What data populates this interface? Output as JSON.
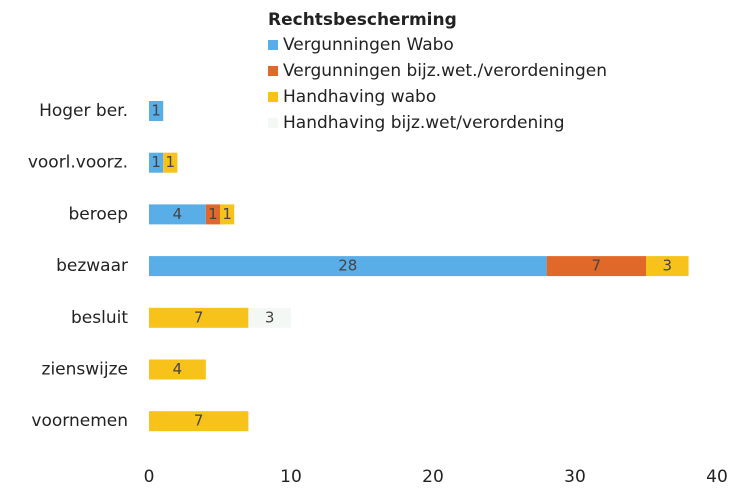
{
  "chart_data": {
    "type": "stacked_barh",
    "legend_title": "Rechtsbescherming",
    "categories": [
      "Hoger ber.",
      "voorl.voorz.",
      "beroep",
      "bezwaar",
      "besluit",
      "zienswijze",
      "voornemen"
    ],
    "series": [
      {
        "name": "Vergunningen Wabo",
        "color": "#5aaee8",
        "values": [
          1,
          1,
          4,
          28,
          null,
          null,
          null
        ]
      },
      {
        "name": "Vergunningen bijz.wet./verordeningen",
        "color": "#e0692a",
        "values": [
          null,
          null,
          1,
          7,
          null,
          null,
          null
        ]
      },
      {
        "name": "Handhaving wabo",
        "color": "#f7c31a",
        "values": [
          null,
          1,
          1,
          3,
          7,
          4,
          7
        ]
      },
      {
        "name": "Handhaving bijz.wet/verordening",
        "color": "#f4f8f4",
        "values": [
          null,
          null,
          null,
          null,
          3,
          null,
          null
        ]
      }
    ],
    "xlim": [
      0,
      40
    ],
    "xticks": [
      0,
      10,
      20,
      30,
      40
    ],
    "grid": false,
    "legend_position": "top"
  }
}
